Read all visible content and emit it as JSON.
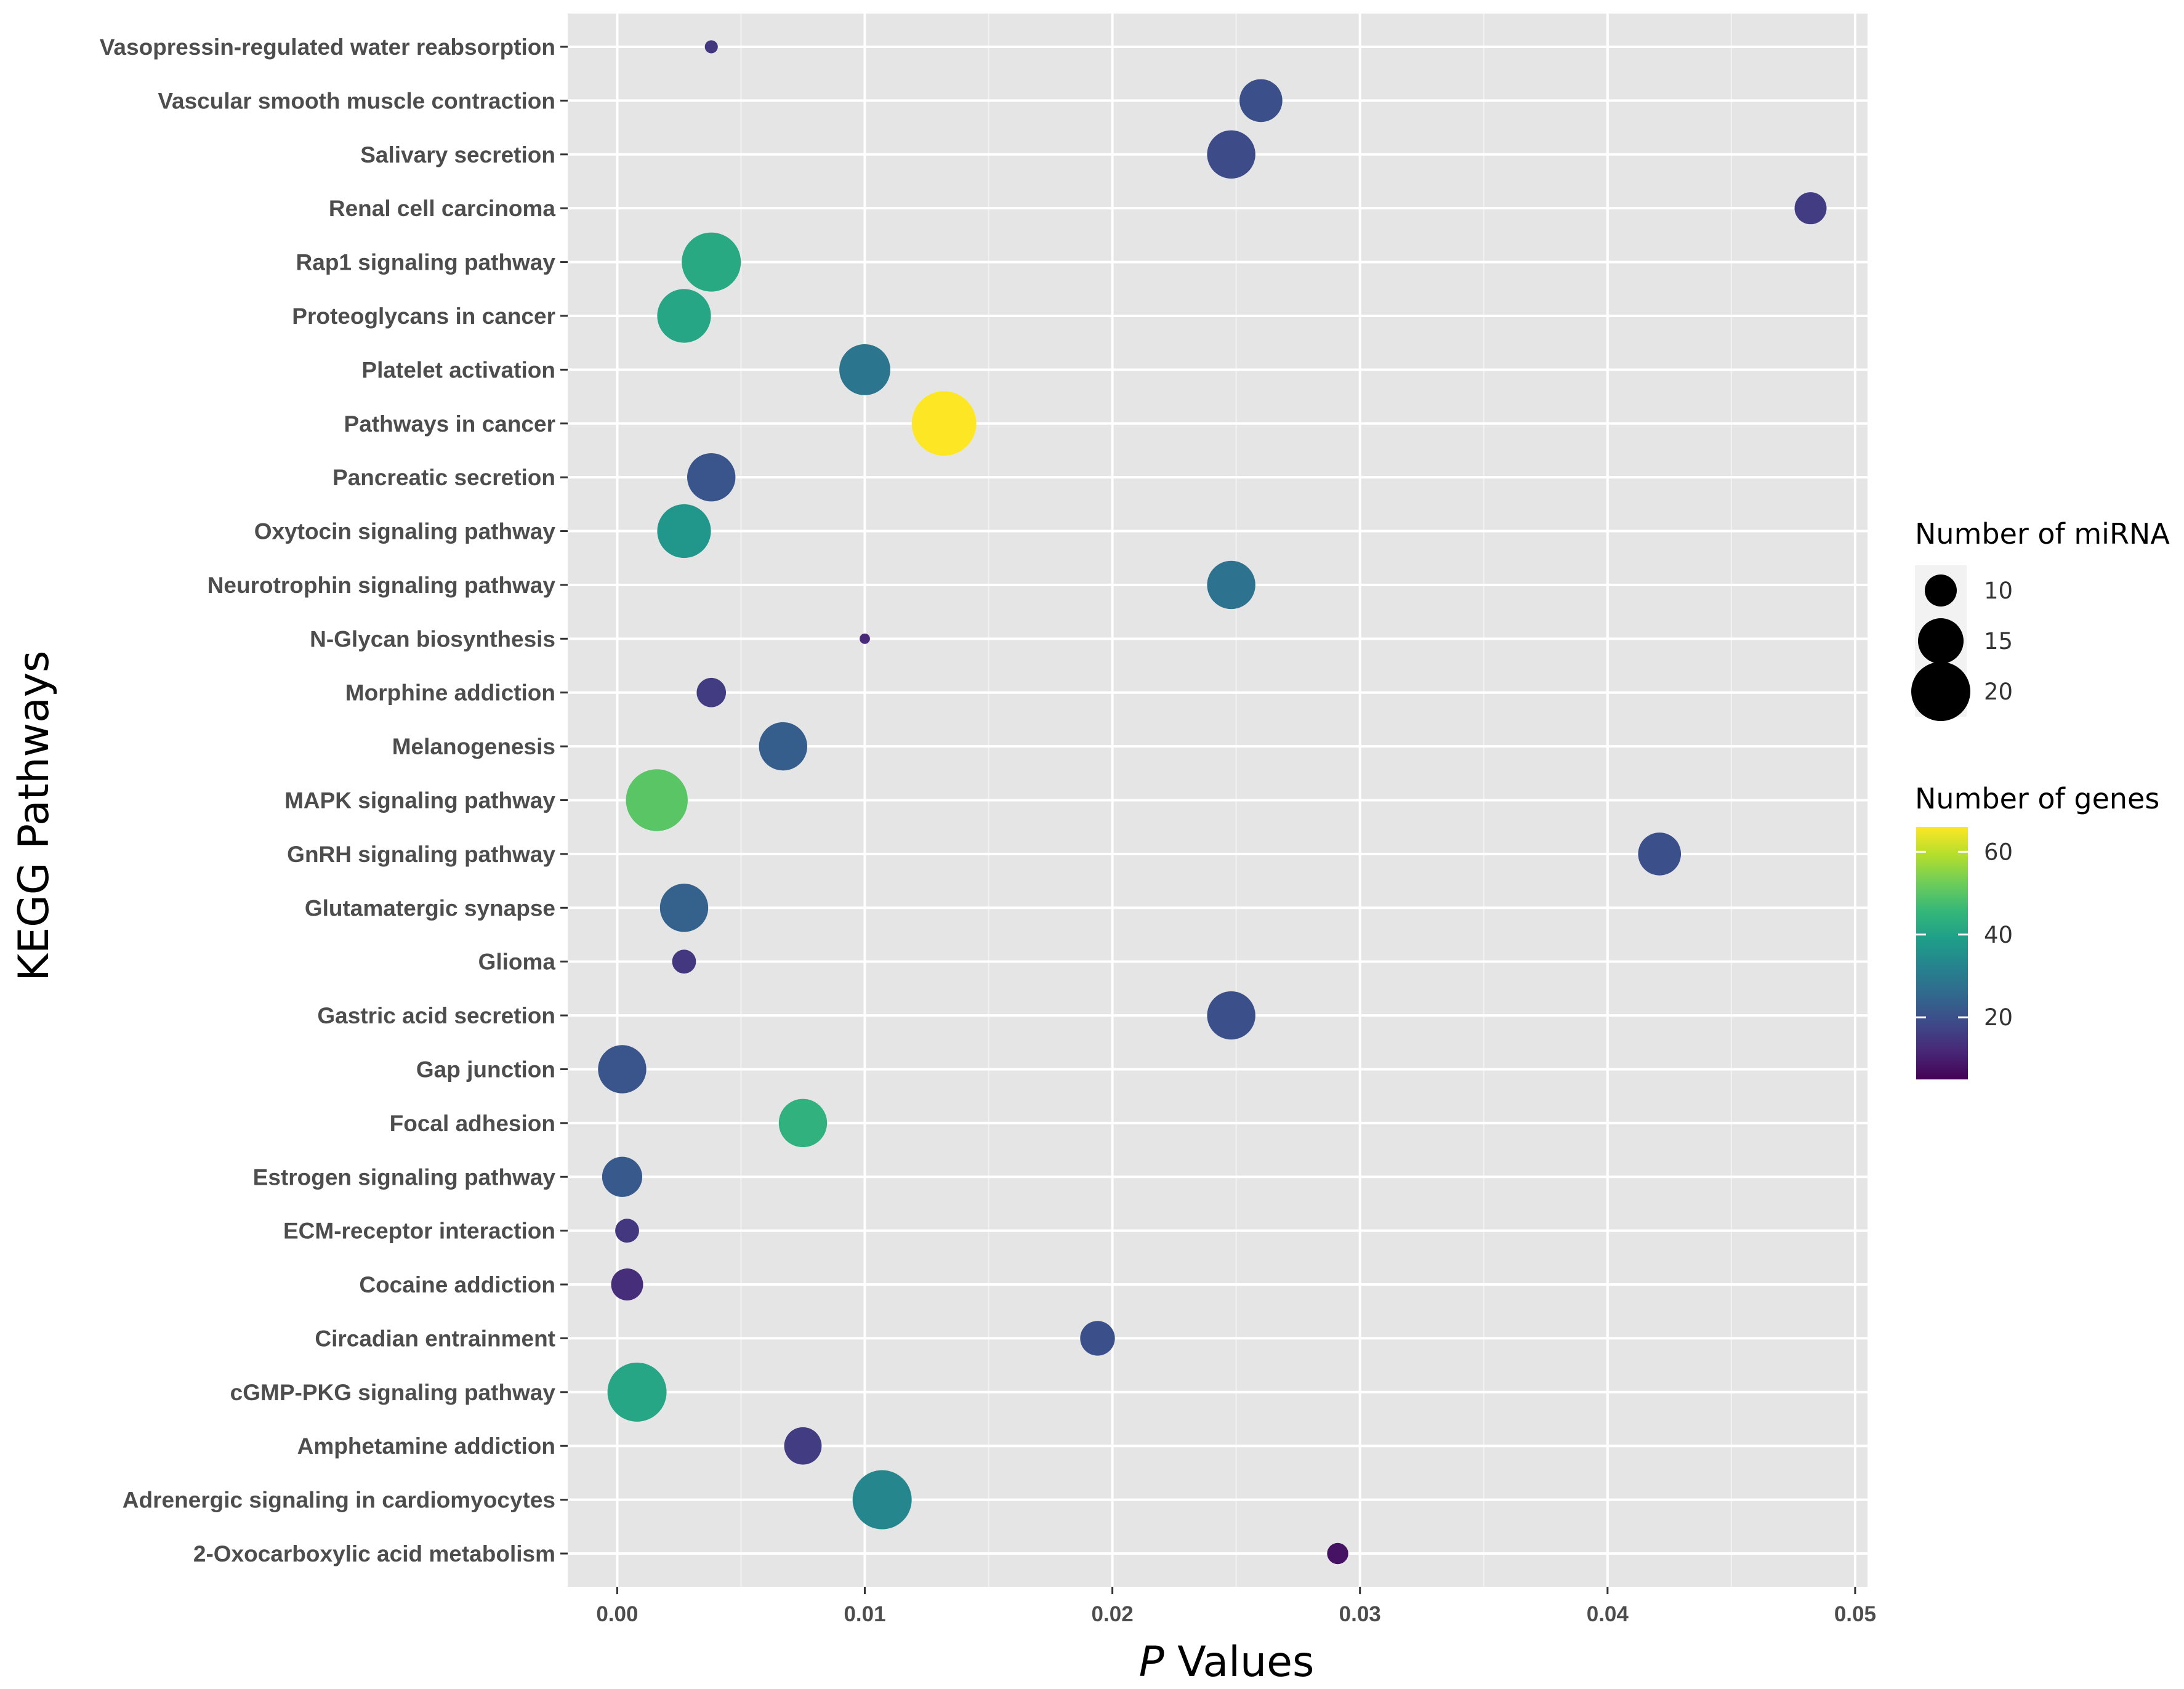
{
  "chart_data": {
    "type": "scatter",
    "title": "",
    "xlabel_italic": "P",
    "xlabel_rest": " Values",
    "ylabel": "KEGG Pathways",
    "xlim": [
      -0.002,
      0.0505
    ],
    "x_ticks": [
      0.0,
      0.01,
      0.02,
      0.03,
      0.04,
      0.05
    ],
    "x_tick_labels": [
      "0.00",
      "0.01",
      "0.02",
      "0.03",
      "0.04",
      "0.05"
    ],
    "grid": true,
    "background": "#e5e5e5",
    "size_legend": {
      "title": "Number of miRNA",
      "labels": [
        "10",
        "15",
        "20"
      ],
      "values": [
        10,
        15,
        20
      ],
      "position": "right"
    },
    "color_legend": {
      "title": "Number of genes",
      "labels": [
        "60",
        "40",
        "20"
      ],
      "values": [
        60,
        40,
        20
      ],
      "range": [
        5,
        66
      ],
      "colormap": "viridis",
      "position": "right"
    },
    "points": [
      {
        "pathway": "Vasopressin-regulated water reabsorption",
        "p": 0.0038,
        "mirna": 3,
        "genes": 15
      },
      {
        "pathway": "Vascular smooth muscle contraction",
        "p": 0.026,
        "mirna": 14,
        "genes": 20
      },
      {
        "pathway": "Salivary secretion",
        "p": 0.0248,
        "mirna": 16,
        "genes": 19
      },
      {
        "pathway": "Renal cell carcinoma",
        "p": 0.0482,
        "mirna": 10,
        "genes": 16
      },
      {
        "pathway": "Rap1 signaling pathway",
        "p": 0.0038,
        "mirna": 20,
        "genes": 42
      },
      {
        "pathway": "Proteoglycans in cancer",
        "p": 0.0027,
        "mirna": 18,
        "genes": 41
      },
      {
        "pathway": "Platelet activation",
        "p": 0.01,
        "mirna": 17,
        "genes": 29
      },
      {
        "pathway": "Pathways in cancer",
        "p": 0.0132,
        "mirna": 22,
        "genes": 66
      },
      {
        "pathway": "Pancreatic secretion",
        "p": 0.0038,
        "mirna": 16,
        "genes": 21
      },
      {
        "pathway": "Oxytocin signaling pathway",
        "p": 0.0027,
        "mirna": 18,
        "genes": 37
      },
      {
        "pathway": "Neurotrophin signaling pathway",
        "p": 0.0248,
        "mirna": 16,
        "genes": 28
      },
      {
        "pathway": "N-Glycan biosynthesis",
        "p": 0.01,
        "mirna": 2,
        "genes": 12
      },
      {
        "pathway": "Morphine addiction",
        "p": 0.0038,
        "mirna": 9,
        "genes": 16
      },
      {
        "pathway": "Melanogenesis",
        "p": 0.0067,
        "mirna": 16,
        "genes": 23
      },
      {
        "pathway": "MAPK signaling pathway",
        "p": 0.0016,
        "mirna": 21,
        "genes": 50
      },
      {
        "pathway": "GnRH signaling pathway",
        "p": 0.0421,
        "mirna": 14,
        "genes": 20
      },
      {
        "pathway": "Glutamatergic synapse",
        "p": 0.0027,
        "mirna": 16,
        "genes": 24
      },
      {
        "pathway": "Glioma",
        "p": 0.0027,
        "mirna": 7,
        "genes": 15
      },
      {
        "pathway": "Gastric acid secretion",
        "p": 0.0248,
        "mirna": 16,
        "genes": 20
      },
      {
        "pathway": "Gap junction",
        "p": 0.0002,
        "mirna": 16,
        "genes": 21
      },
      {
        "pathway": "Focal adhesion",
        "p": 0.0075,
        "mirna": 16,
        "genes": 44
      },
      {
        "pathway": "Estrogen signaling pathway",
        "p": 0.0002,
        "mirna": 13,
        "genes": 22
      },
      {
        "pathway": "ECM-receptor interaction",
        "p": 0.0004,
        "mirna": 7,
        "genes": 15
      },
      {
        "pathway": "Cocaine addiction",
        "p": 0.0004,
        "mirna": 10,
        "genes": 13
      },
      {
        "pathway": "Circadian entrainment",
        "p": 0.0194,
        "mirna": 11,
        "genes": 20
      },
      {
        "pathway": "cGMP-PKG signaling pathway",
        "p": 0.0008,
        "mirna": 20,
        "genes": 41
      },
      {
        "pathway": "Amphetamine addiction",
        "p": 0.0075,
        "mirna": 12,
        "genes": 16
      },
      {
        "pathway": "Adrenergic signaling in cardiomyocytes",
        "p": 0.0107,
        "mirna": 20,
        "genes": 33
      },
      {
        "pathway": "2-Oxocarboxylic acid metabolism",
        "p": 0.0291,
        "mirna": 6,
        "genes": 8
      }
    ]
  }
}
